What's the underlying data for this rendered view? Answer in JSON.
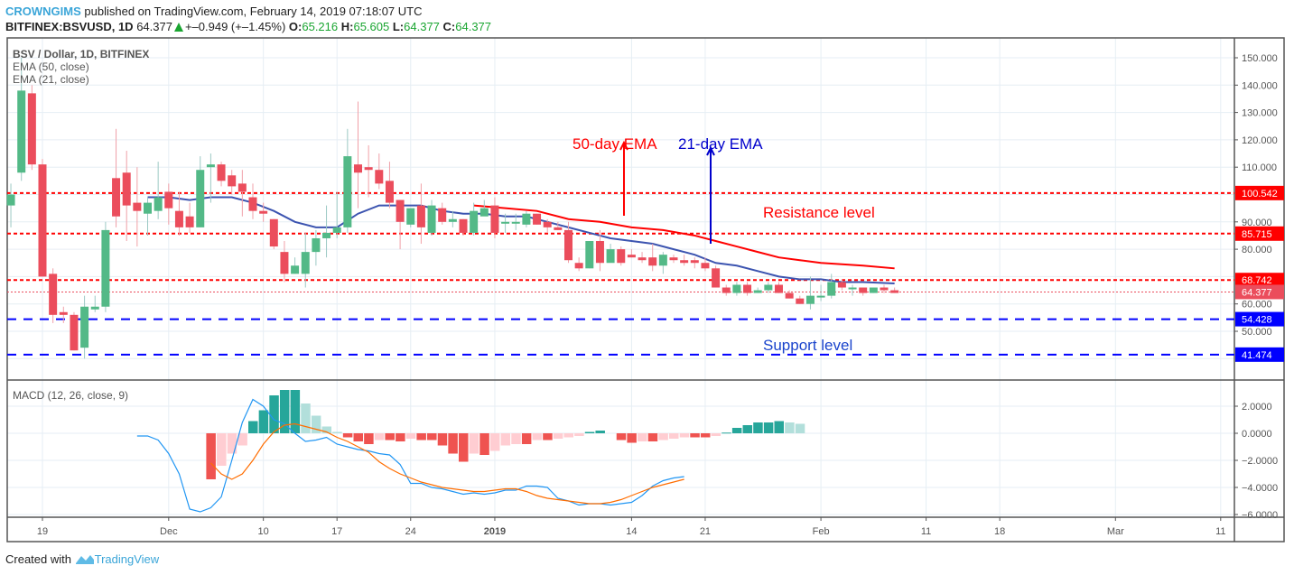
{
  "header": {
    "author": "CROWNGIMS",
    "published": " published on TradingView.com, February 14, 2019 07:18:07 UTC",
    "symbol": "BITFINEX:BSVUSD, 1D",
    "last": "64.377",
    "change": "+–0.949 (+–1.45%)",
    "o_label": "O:",
    "o": "65.216",
    "h_label": "H:",
    "h": "65.605",
    "l_label": "L:",
    "l": "64.377",
    "c_label": "C:",
    "c": "64.377"
  },
  "legend": {
    "title": "BSV / Dollar, 1D, BITFINEX",
    "ema50": "EMA (50, close)",
    "ema21": "EMA (21, close)",
    "macd": "MACD (12, 26, close, 9)"
  },
  "annotations": {
    "ema50_label": "50-day EMA",
    "ema21_label": "21-day EMA",
    "resistance": "Resistance level",
    "support": "Support level"
  },
  "footer": {
    "created": "Created with",
    "brand": "TradingView"
  },
  "colors": {
    "up": "#53b987",
    "down": "#eb4d5c",
    "ema50": "#ff0000",
    "ema21": "#3c54b0",
    "resistance": "#ff0000",
    "support": "#0000ff",
    "macd": "#2196f3",
    "signal": "#ff6d00",
    "hist_up_strong": "#26a69a",
    "hist_up_weak": "#b2dfdb",
    "hist_dn_strong": "#ef5350",
    "hist_dn_weak": "#ffcdd2"
  },
  "chart_data": {
    "type": "candlestick",
    "title": "BSV / Dollar, 1D, BITFINEX",
    "price_axis": {
      "ticks": [
        150,
        140,
        130,
        120,
        110,
        90,
        80,
        60,
        50
      ],
      "range": [
        38,
        158
      ]
    },
    "time_axis": {
      "ticks": [
        {
          "label": "19",
          "day": 0
        },
        {
          "label": "Dec",
          "day": 12
        },
        {
          "label": "10",
          "day": 21
        },
        {
          "label": "17",
          "day": 28
        },
        {
          "label": "24",
          "day": 35
        },
        {
          "label": "2019",
          "day": 43
        },
        {
          "label": "14",
          "day": 56
        },
        {
          "label": "21",
          "day": 63
        },
        {
          "label": "Feb",
          "day": 74
        },
        {
          "label": "11",
          "day": 84
        },
        {
          "label": "18",
          "day": 91
        },
        {
          "label": "Mar",
          "day": 102
        },
        {
          "label": "11",
          "day": 112
        }
      ]
    },
    "levels": [
      {
        "value": 100.542,
        "kind": "resistance",
        "label": "100.542"
      },
      {
        "value": 85.715,
        "kind": "resistance",
        "label": "85.715"
      },
      {
        "value": 68.742,
        "kind": "resistance",
        "label": "68.742"
      },
      {
        "value": 54.428,
        "kind": "support",
        "label": "54.428"
      },
      {
        "value": 41.474,
        "kind": "support",
        "label": "41.474"
      }
    ],
    "last_price": {
      "value": 64.377,
      "label": "64.377"
    },
    "candles": [
      [
        -3,
        96,
        100,
        88,
        104
      ],
      [
        -2,
        108,
        138,
        105,
        150
      ],
      [
        -1,
        137,
        111,
        109,
        140
      ],
      [
        0,
        111,
        70,
        70,
        113
      ],
      [
        1,
        71,
        56,
        53,
        73
      ],
      [
        2,
        57,
        56,
        53,
        59
      ],
      [
        3,
        56,
        43,
        43,
        57
      ],
      [
        4,
        44,
        59,
        40,
        63
      ],
      [
        5,
        58,
        59,
        57,
        63
      ],
      [
        6,
        59,
        87,
        57,
        90
      ],
      [
        7,
        106,
        92,
        88,
        124
      ],
      [
        8,
        108,
        96,
        83,
        116
      ],
      [
        9,
        97,
        94,
        81,
        110
      ],
      [
        10,
        93,
        97,
        85,
        99
      ],
      [
        11,
        94,
        99,
        91,
        112
      ],
      [
        12,
        101,
        95,
        89,
        104
      ],
      [
        13,
        94,
        88,
        85,
        101
      ],
      [
        14,
        92,
        88,
        86,
        97
      ],
      [
        15,
        88,
        109,
        88,
        114
      ],
      [
        16,
        110,
        111,
        97,
        115
      ],
      [
        17,
        111,
        105,
        103,
        112
      ],
      [
        18,
        107,
        103,
        100,
        109
      ],
      [
        19,
        104,
        101,
        92,
        109
      ],
      [
        20,
        99,
        94,
        91,
        104
      ],
      [
        21,
        94,
        93,
        90,
        97
      ],
      [
        22,
        91,
        81,
        80,
        91
      ],
      [
        23,
        79,
        71,
        68,
        83
      ],
      [
        24,
        71,
        74,
        71,
        77
      ],
      [
        25,
        71,
        79,
        66,
        86
      ],
      [
        26,
        79,
        84,
        74,
        87
      ],
      [
        27,
        84,
        86,
        77,
        96
      ],
      [
        28,
        86,
        88,
        84,
        101
      ],
      [
        29,
        88,
        114,
        86,
        124
      ],
      [
        30,
        111,
        108,
        95,
        134
      ],
      [
        31,
        110,
        109,
        99,
        118
      ],
      [
        32,
        109,
        104,
        102,
        115
      ],
      [
        33,
        105,
        97,
        95,
        112
      ],
      [
        34,
        98,
        90,
        80,
        98
      ],
      [
        35,
        89,
        95,
        88,
        95
      ],
      [
        36,
        96,
        88,
        82,
        104
      ],
      [
        37,
        86,
        96,
        85,
        98
      ],
      [
        38,
        95,
        90,
        89,
        97
      ],
      [
        39,
        90,
        91,
        88,
        94
      ],
      [
        40,
        91,
        86,
        85,
        91
      ],
      [
        41,
        86,
        94,
        85,
        97
      ],
      [
        42,
        92,
        95,
        93,
        98
      ],
      [
        43,
        96,
        86,
        84,
        99
      ],
      [
        44,
        90,
        90,
        86,
        93
      ],
      [
        45,
        90,
        90,
        87,
        93
      ],
      [
        46,
        89,
        93,
        88,
        94
      ],
      [
        47,
        93,
        89,
        89,
        93
      ],
      [
        48,
        90,
        88,
        86,
        91
      ],
      [
        49,
        88,
        87,
        87,
        90
      ],
      [
        50,
        87,
        76,
        75,
        90
      ],
      [
        51,
        75,
        73,
        72,
        77
      ],
      [
        52,
        73,
        83,
        73,
        83
      ],
      [
        53,
        83,
        75,
        72,
        87
      ],
      [
        54,
        75,
        80,
        76,
        82
      ],
      [
        55,
        80,
        75,
        74,
        81
      ],
      [
        56,
        78,
        77,
        77,
        80
      ],
      [
        57,
        77,
        76,
        75,
        79
      ],
      [
        58,
        77,
        74,
        72,
        82
      ],
      [
        59,
        74,
        78,
        71,
        79
      ],
      [
        60,
        77,
        76,
        75,
        78
      ],
      [
        61,
        76,
        75,
        74,
        78
      ],
      [
        62,
        76,
        75,
        73,
        77
      ],
      [
        63,
        75,
        73,
        72,
        77
      ],
      [
        64,
        73,
        66,
        66,
        74
      ],
      [
        65,
        66,
        64,
        63,
        67
      ],
      [
        66,
        64,
        67,
        63,
        68
      ],
      [
        67,
        67,
        64,
        63,
        68
      ],
      [
        68,
        64,
        65,
        64,
        66
      ],
      [
        69,
        65,
        67,
        64,
        68
      ],
      [
        70,
        67,
        64,
        64,
        68
      ],
      [
        71,
        64,
        62,
        62,
        65
      ],
      [
        72,
        62,
        60,
        60,
        63
      ],
      [
        73,
        60,
        63,
        58,
        70
      ],
      [
        74,
        63,
        63,
        61,
        67
      ],
      [
        75,
        63,
        68,
        62,
        71
      ],
      [
        76,
        68,
        66,
        65,
        69
      ],
      [
        77,
        66,
        66,
        63,
        67
      ],
      [
        78,
        66,
        64,
        63,
        66
      ],
      [
        79,
        64,
        66,
        64,
        66
      ],
      [
        80,
        66,
        65,
        64,
        67
      ],
      [
        81,
        65,
        64,
        64,
        66
      ]
    ],
    "ema21": [
      [
        10,
        99
      ],
      [
        12,
        99
      ],
      [
        14,
        98
      ],
      [
        16,
        99
      ],
      [
        18,
        99
      ],
      [
        20,
        97
      ],
      [
        22,
        94
      ],
      [
        24,
        90
      ],
      [
        26,
        88
      ],
      [
        28,
        88
      ],
      [
        30,
        93
      ],
      [
        32,
        96
      ],
      [
        34,
        96
      ],
      [
        36,
        96
      ],
      [
        38,
        94
      ],
      [
        40,
        93
      ],
      [
        42,
        93
      ],
      [
        44,
        92
      ],
      [
        46,
        92
      ],
      [
        48,
        90
      ],
      [
        50,
        88
      ],
      [
        52,
        86
      ],
      [
        54,
        84
      ],
      [
        56,
        83
      ],
      [
        58,
        82
      ],
      [
        60,
        80
      ],
      [
        62,
        78
      ],
      [
        64,
        75
      ],
      [
        66,
        74
      ],
      [
        68,
        72
      ],
      [
        70,
        70
      ],
      [
        72,
        69
      ],
      [
        74,
        69
      ],
      [
        76,
        68
      ],
      [
        78,
        68
      ],
      [
        81,
        67.5
      ]
    ],
    "ema50": [
      [
        41,
        96
      ],
      [
        44,
        95
      ],
      [
        47,
        94
      ],
      [
        50,
        91
      ],
      [
        53,
        90
      ],
      [
        56,
        88
      ],
      [
        59,
        87
      ],
      [
        62,
        85
      ],
      [
        64,
        83
      ],
      [
        66,
        81
      ],
      [
        68,
        79
      ],
      [
        70,
        77
      ],
      [
        72,
        76
      ],
      [
        74,
        75
      ],
      [
        76,
        74.5
      ],
      [
        78,
        74
      ],
      [
        81,
        73
      ]
    ],
    "macd_axis": {
      "ticks": [
        2,
        0,
        -2,
        -4,
        -6
      ],
      "range": [
        -6.6,
        4.2
      ]
    },
    "macd": [
      [
        9,
        -0.2
      ],
      [
        10,
        -0.2
      ],
      [
        11,
        -0.5
      ],
      [
        12,
        -1.5
      ],
      [
        13,
        -3
      ],
      [
        14,
        -5.6
      ],
      [
        15,
        -5.8
      ],
      [
        16,
        -5.5
      ],
      [
        17,
        -4.7
      ],
      [
        18,
        -2
      ],
      [
        19,
        0.8
      ],
      [
        20,
        2.5
      ],
      [
        21,
        2
      ],
      [
        22,
        1
      ],
      [
        23,
        0.7
      ],
      [
        24,
        0
      ],
      [
        25,
        -0.6
      ],
      [
        26,
        -0.5
      ],
      [
        27,
        -0.3
      ],
      [
        28,
        -0.8
      ],
      [
        29,
        -1
      ],
      [
        30,
        -1.2
      ],
      [
        31,
        -1.3
      ],
      [
        32,
        -1.5
      ],
      [
        33,
        -1.6
      ],
      [
        34,
        -2.3
      ],
      [
        35,
        -3.7
      ],
      [
        36,
        -3.7
      ],
      [
        37,
        -4
      ],
      [
        38,
        -4.1
      ],
      [
        39,
        -4.3
      ],
      [
        40,
        -4.5
      ],
      [
        41,
        -4.4
      ],
      [
        42,
        -4.5
      ],
      [
        43,
        -4.4
      ],
      [
        44,
        -4.2
      ],
      [
        45,
        -4.2
      ],
      [
        46,
        -3.9
      ],
      [
        47,
        -3.9
      ],
      [
        48,
        -4
      ],
      [
        49,
        -4.8
      ],
      [
        50,
        -5.0
      ],
      [
        51,
        -5.3
      ],
      [
        52,
        -5.2
      ],
      [
        53,
        -5.2
      ],
      [
        54,
        -5.3
      ],
      [
        55,
        -5.2
      ],
      [
        56,
        -5.1
      ],
      [
        57,
        -4.6
      ],
      [
        58,
        -3.9
      ],
      [
        59,
        -3.5
      ],
      [
        60,
        -3.3
      ],
      [
        61,
        -3.2
      ]
    ],
    "signal": [
      [
        16,
        -2.2
      ],
      [
        17,
        -3.0
      ],
      [
        18,
        -3.4
      ],
      [
        19,
        -3.0
      ],
      [
        20,
        -2.0
      ],
      [
        21,
        -0.8
      ],
      [
        22,
        0.1
      ],
      [
        23,
        0.6
      ],
      [
        24,
        0.7
      ],
      [
        25,
        0.5
      ],
      [
        26,
        0.3
      ],
      [
        27,
        0.1
      ],
      [
        28,
        -0.3
      ],
      [
        29,
        -0.6
      ],
      [
        30,
        -1.0
      ],
      [
        31,
        -1.4
      ],
      [
        32,
        -2.1
      ],
      [
        33,
        -2.6
      ],
      [
        34,
        -3.0
      ],
      [
        35,
        -3.3
      ],
      [
        36,
        -3.6
      ],
      [
        37,
        -3.8
      ],
      [
        38,
        -4.0
      ],
      [
        39,
        -4.1
      ],
      [
        40,
        -4.2
      ],
      [
        41,
        -4.3
      ],
      [
        42,
        -4.3
      ],
      [
        43,
        -4.2
      ],
      [
        44,
        -4.1
      ],
      [
        45,
        -4.1
      ],
      [
        46,
        -4.3
      ],
      [
        47,
        -4.6
      ],
      [
        48,
        -4.8
      ],
      [
        49,
        -4.9
      ],
      [
        50,
        -5.0
      ],
      [
        51,
        -5.1
      ],
      [
        52,
        -5.2
      ],
      [
        53,
        -5.2
      ],
      [
        54,
        -5.1
      ],
      [
        55,
        -4.9
      ],
      [
        56,
        -4.6
      ],
      [
        57,
        -4.3
      ],
      [
        58,
        -4.0
      ],
      [
        59,
        -3.8
      ],
      [
        60,
        -3.6
      ],
      [
        61,
        -3.4
      ]
    ],
    "histogram": [
      [
        16,
        -3.4
      ],
      [
        17,
        -2.4
      ],
      [
        18,
        -1.5
      ],
      [
        19,
        -0.9
      ],
      [
        20,
        0.9
      ],
      [
        21,
        1.7
      ],
      [
        22,
        2.8
      ],
      [
        23,
        3.2
      ],
      [
        24,
        3.2
      ],
      [
        25,
        2.2
      ],
      [
        26,
        1.3
      ],
      [
        27,
        0.5
      ],
      [
        28,
        0.1
      ],
      [
        29,
        -0.3
      ],
      [
        30,
        -0.6
      ],
      [
        31,
        -0.8
      ],
      [
        32,
        -0.5
      ],
      [
        33,
        -0.5
      ],
      [
        34,
        -0.6
      ],
      [
        35,
        -0.4
      ],
      [
        36,
        -0.5
      ],
      [
        37,
        -0.5
      ],
      [
        38,
        -0.9
      ],
      [
        39,
        -1.5
      ],
      [
        40,
        -2.1
      ],
      [
        41,
        -1.5
      ],
      [
        42,
        -1.6
      ],
      [
        43,
        -1.3
      ],
      [
        44,
        -0.9
      ],
      [
        45,
        -0.8
      ],
      [
        46,
        -0.8
      ],
      [
        47,
        -0.5
      ],
      [
        48,
        -0.5
      ],
      [
        49,
        -0.4
      ],
      [
        50,
        -0.3
      ],
      [
        51,
        -0.2
      ],
      [
        52,
        0.1
      ],
      [
        53,
        0.2
      ],
      [
        55,
        -0.5
      ],
      [
        56,
        -0.7
      ],
      [
        57,
        -0.6
      ],
      [
        58,
        -0.6
      ],
      [
        59,
        -0.5
      ],
      [
        60,
        -0.4
      ],
      [
        61,
        -0.3
      ],
      [
        62,
        -0.3
      ],
      [
        63,
        -0.3
      ],
      [
        64,
        -0.2
      ],
      [
        65,
        0.05
      ],
      [
        66,
        0.4
      ],
      [
        67,
        0.6
      ],
      [
        68,
        0.8
      ],
      [
        69,
        0.8
      ],
      [
        70,
        0.9
      ],
      [
        71,
        0.8
      ],
      [
        72,
        0.7
      ]
    ]
  }
}
